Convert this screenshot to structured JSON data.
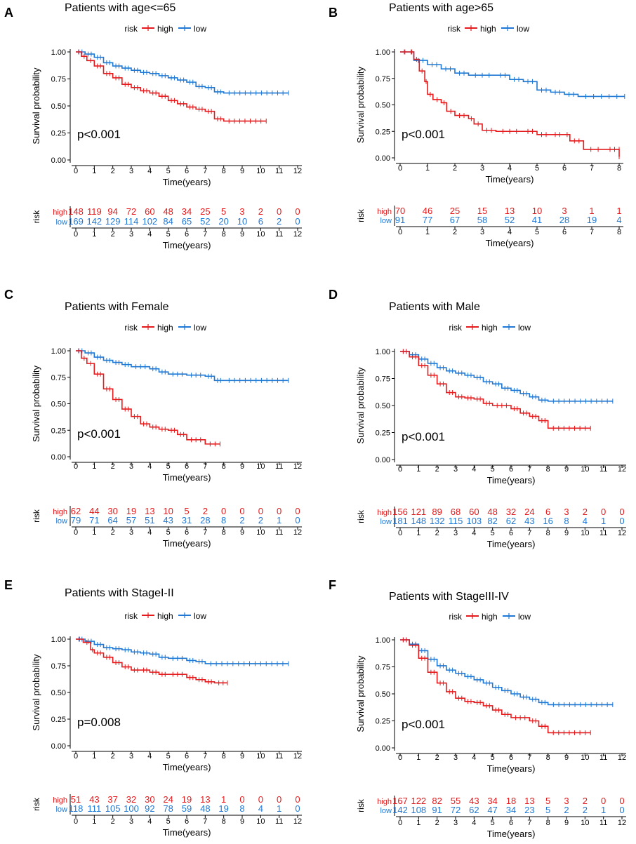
{
  "colors": {
    "high": "#e41a1c",
    "low": "#1f78d4",
    "axis": "#000000"
  },
  "panels": [
    {
      "letter": "A",
      "title": "Patients with age<=65",
      "legend_title": "risk",
      "legend_high": "high",
      "legend_low": "low",
      "pvalue": "p<0.001",
      "ylabel": "Survival probability",
      "xlabel": "Time(years)",
      "ylim": [
        0,
        1
      ],
      "xlim": [
        0,
        12
      ],
      "yticks": [
        "0.00",
        "0.25",
        "0.50",
        "0.75",
        "1.00"
      ],
      "xticks": [
        "0",
        "1",
        "2",
        "3",
        "4",
        "5",
        "6",
        "7",
        "8",
        "9",
        "10",
        "11",
        "12"
      ],
      "risk_label": "risk",
      "risk_high_label": "high",
      "risk_low_label": "low",
      "risk_high": [
        "148",
        "119",
        "94",
        "72",
        "60",
        "48",
        "34",
        "25",
        "5",
        "3",
        "2",
        "0",
        "0"
      ],
      "risk_low": [
        "169",
        "142",
        "129",
        "114",
        "102",
        "84",
        "65",
        "52",
        "20",
        "10",
        "6",
        "2",
        "0"
      ],
      "curve_high": [
        [
          0,
          1
        ],
        [
          0.3,
          0.96
        ],
        [
          0.6,
          0.92
        ],
        [
          1,
          0.87
        ],
        [
          1.5,
          0.8
        ],
        [
          2,
          0.76
        ],
        [
          2.5,
          0.7
        ],
        [
          3,
          0.67
        ],
        [
          3.5,
          0.64
        ],
        [
          4,
          0.62
        ],
        [
          4.5,
          0.59
        ],
        [
          5,
          0.55
        ],
        [
          5.5,
          0.52
        ],
        [
          6,
          0.49
        ],
        [
          6.5,
          0.47
        ],
        [
          7,
          0.45
        ],
        [
          7.5,
          0.38
        ],
        [
          8,
          0.36
        ],
        [
          10.3,
          0.36
        ]
      ],
      "curve_low": [
        [
          0,
          1
        ],
        [
          0.5,
          0.98
        ],
        [
          1,
          0.95
        ],
        [
          1.5,
          0.9
        ],
        [
          2,
          0.87
        ],
        [
          2.5,
          0.85
        ],
        [
          3,
          0.83
        ],
        [
          3.5,
          0.81
        ],
        [
          4,
          0.8
        ],
        [
          4.5,
          0.78
        ],
        [
          5,
          0.76
        ],
        [
          5.5,
          0.74
        ],
        [
          6,
          0.72
        ],
        [
          6.5,
          0.68
        ],
        [
          7,
          0.67
        ],
        [
          7.5,
          0.63
        ],
        [
          8,
          0.62
        ],
        [
          11.5,
          0.62
        ]
      ]
    },
    {
      "letter": "B",
      "title": "Patients with age>65",
      "legend_title": "risk",
      "legend_high": "high",
      "legend_low": "low",
      "pvalue": "p<0.001",
      "ylabel": "Survival probability",
      "xlabel": "Time(years)",
      "ylim": [
        0,
        1
      ],
      "xlim": [
        0,
        8
      ],
      "yticks": [
        "0.00",
        "0.25",
        "0.50",
        "0.75",
        "1.00"
      ],
      "xticks": [
        "0",
        "1",
        "2",
        "3",
        "4",
        "5",
        "6",
        "7",
        "8"
      ],
      "risk_label": "risk",
      "risk_high_label": "high",
      "risk_low_label": "low",
      "risk_high": [
        "70",
        "46",
        "25",
        "15",
        "13",
        "10",
        "3",
        "1",
        "1"
      ],
      "risk_low": [
        "91",
        "77",
        "67",
        "58",
        "52",
        "41",
        "28",
        "19",
        "4"
      ],
      "curve_high": [
        [
          0,
          1
        ],
        [
          0.35,
          1
        ],
        [
          0.5,
          0.93
        ],
        [
          0.7,
          0.82
        ],
        [
          0.9,
          0.72
        ],
        [
          1,
          0.6
        ],
        [
          1.2,
          0.55
        ],
        [
          1.5,
          0.52
        ],
        [
          1.7,
          0.44
        ],
        [
          2,
          0.4
        ],
        [
          2.5,
          0.37
        ],
        [
          2.7,
          0.32
        ],
        [
          3,
          0.26
        ],
        [
          3.5,
          0.25
        ],
        [
          4.5,
          0.25
        ],
        [
          5,
          0.22
        ],
        [
          5.5,
          0.22
        ],
        [
          6,
          0.22
        ],
        [
          6.2,
          0.16
        ],
        [
          6.7,
          0.08
        ],
        [
          7.5,
          0.08
        ],
        [
          8,
          0.08
        ],
        [
          8,
          0.01
        ]
      ],
      "curve_low": [
        [
          0,
          1
        ],
        [
          0.3,
          1
        ],
        [
          0.5,
          0.92
        ],
        [
          1,
          0.88
        ],
        [
          1.5,
          0.84
        ],
        [
          2,
          0.8
        ],
        [
          2.5,
          0.78
        ],
        [
          3.5,
          0.78
        ],
        [
          4,
          0.74
        ],
        [
          4.5,
          0.72
        ],
        [
          5,
          0.64
        ],
        [
          5.5,
          0.62
        ],
        [
          6,
          0.6
        ],
        [
          6.5,
          0.58
        ],
        [
          8.2,
          0.58
        ]
      ]
    },
    {
      "letter": "C",
      "title": "Patients with Female",
      "legend_title": "risk",
      "legend_high": "high",
      "legend_low": "low",
      "pvalue": "p<0.001",
      "ylabel": "Survival probability",
      "xlabel": "Time(years)",
      "ylim": [
        0,
        1
      ],
      "xlim": [
        0,
        12
      ],
      "yticks": [
        "0.00",
        "0.25",
        "0.50",
        "0.75",
        "1.00"
      ],
      "xticks": [
        "0",
        "1",
        "2",
        "3",
        "4",
        "5",
        "6",
        "7",
        "8",
        "9",
        "10",
        "11",
        "12"
      ],
      "risk_label": "risk",
      "risk_high_label": "high",
      "risk_low_label": "low",
      "risk_high": [
        "62",
        "44",
        "30",
        "19",
        "13",
        "10",
        "5",
        "2",
        "0",
        "0",
        "0",
        "0",
        "0"
      ],
      "risk_low": [
        "79",
        "71",
        "64",
        "57",
        "51",
        "43",
        "31",
        "28",
        "8",
        "2",
        "2",
        "1",
        "0"
      ],
      "curve_high": [
        [
          0,
          1
        ],
        [
          0.3,
          0.93
        ],
        [
          0.6,
          0.88
        ],
        [
          1,
          0.78
        ],
        [
          1.5,
          0.64
        ],
        [
          2,
          0.54
        ],
        [
          2.5,
          0.45
        ],
        [
          3,
          0.38
        ],
        [
          3.5,
          0.31
        ],
        [
          4,
          0.28
        ],
        [
          4.5,
          0.26
        ],
        [
          5,
          0.25
        ],
        [
          5.5,
          0.21
        ],
        [
          6,
          0.16
        ],
        [
          7,
          0.12
        ],
        [
          7.8,
          0.12
        ]
      ],
      "curve_low": [
        [
          0,
          1
        ],
        [
          0.5,
          0.98
        ],
        [
          1,
          0.94
        ],
        [
          1.5,
          0.91
        ],
        [
          2,
          0.89
        ],
        [
          2.5,
          0.87
        ],
        [
          3,
          0.85
        ],
        [
          4,
          0.83
        ],
        [
          4.5,
          0.8
        ],
        [
          5,
          0.78
        ],
        [
          6,
          0.77
        ],
        [
          7,
          0.76
        ],
        [
          7.5,
          0.72
        ],
        [
          8,
          0.72
        ],
        [
          11.5,
          0.72
        ]
      ]
    },
    {
      "letter": "D",
      "title": "Patients with Male",
      "legend_title": "risk",
      "legend_high": "high",
      "legend_low": "low",
      "pvalue": "p<0.001",
      "ylabel": "Survival probability",
      "xlabel": "Time(years)",
      "ylim": [
        0,
        1
      ],
      "xlim": [
        0,
        12
      ],
      "yticks": [
        "0.00",
        "0.25",
        "0.50",
        "0.75",
        "1.00"
      ],
      "xticks": [
        "0",
        "1",
        "2",
        "3",
        "4",
        "5",
        "6",
        "7",
        "8",
        "9",
        "10",
        "11",
        "12"
      ],
      "risk_label": "risk",
      "risk_high_label": "high",
      "risk_low_label": "low",
      "risk_high": [
        "156",
        "121",
        "89",
        "68",
        "60",
        "48",
        "32",
        "24",
        "6",
        "3",
        "2",
        "0",
        "0"
      ],
      "risk_low": [
        "181",
        "148",
        "132",
        "115",
        "103",
        "82",
        "62",
        "43",
        "16",
        "8",
        "4",
        "1",
        "0"
      ],
      "curve_high": [
        [
          0,
          1
        ],
        [
          0.5,
          0.95
        ],
        [
          1,
          0.87
        ],
        [
          1.5,
          0.78
        ],
        [
          2,
          0.7
        ],
        [
          2.5,
          0.62
        ],
        [
          3,
          0.58
        ],
        [
          3.5,
          0.57
        ],
        [
          4,
          0.56
        ],
        [
          4.5,
          0.52
        ],
        [
          5,
          0.5
        ],
        [
          6,
          0.47
        ],
        [
          6.5,
          0.43
        ],
        [
          7,
          0.4
        ],
        [
          7.5,
          0.36
        ],
        [
          8,
          0.29
        ],
        [
          10.3,
          0.29
        ]
      ],
      "curve_low": [
        [
          0,
          1
        ],
        [
          0.5,
          0.97
        ],
        [
          1,
          0.93
        ],
        [
          1.5,
          0.89
        ],
        [
          2,
          0.85
        ],
        [
          2.5,
          0.82
        ],
        [
          3,
          0.8
        ],
        [
          3.5,
          0.78
        ],
        [
          4,
          0.76
        ],
        [
          4.5,
          0.72
        ],
        [
          5,
          0.7
        ],
        [
          5.5,
          0.66
        ],
        [
          6,
          0.64
        ],
        [
          6.5,
          0.61
        ],
        [
          7,
          0.58
        ],
        [
          7.5,
          0.55
        ],
        [
          8,
          0.54
        ],
        [
          11.5,
          0.54
        ]
      ]
    },
    {
      "letter": "E",
      "title": "Patients with StageI-II",
      "legend_title": "risk",
      "legend_high": "high",
      "legend_low": "low",
      "pvalue": "p=0.008",
      "ylabel": "Survival probability",
      "xlabel": "Time(years)",
      "ylim": [
        0,
        1
      ],
      "xlim": [
        0,
        12
      ],
      "yticks": [
        "0.00",
        "0.25",
        "0.50",
        "0.75",
        "1.00"
      ],
      "xticks": [
        "0",
        "1",
        "2",
        "3",
        "4",
        "5",
        "6",
        "7",
        "8",
        "9",
        "10",
        "11",
        "12"
      ],
      "risk_label": "risk",
      "risk_high_label": "high",
      "risk_low_label": "low",
      "risk_high": [
        "51",
        "43",
        "37",
        "32",
        "30",
        "24",
        "19",
        "13",
        "1",
        "0",
        "0",
        "0",
        "0"
      ],
      "risk_low": [
        "118",
        "111",
        "105",
        "100",
        "92",
        "78",
        "59",
        "48",
        "19",
        "8",
        "4",
        "1",
        "0"
      ],
      "curve_high": [
        [
          0,
          1
        ],
        [
          0.4,
          0.97
        ],
        [
          0.8,
          0.9
        ],
        [
          1,
          0.87
        ],
        [
          1.5,
          0.83
        ],
        [
          2,
          0.78
        ],
        [
          2.5,
          0.74
        ],
        [
          3,
          0.71
        ],
        [
          3.5,
          0.71
        ],
        [
          4,
          0.69
        ],
        [
          4.5,
          0.67
        ],
        [
          5,
          0.67
        ],
        [
          6,
          0.64
        ],
        [
          6.5,
          0.62
        ],
        [
          7,
          0.6
        ],
        [
          7.5,
          0.59
        ],
        [
          8.2,
          0.59
        ]
      ],
      "curve_low": [
        [
          0,
          1
        ],
        [
          0.5,
          0.98
        ],
        [
          1,
          0.95
        ],
        [
          1.5,
          0.92
        ],
        [
          2,
          0.91
        ],
        [
          2.5,
          0.9
        ],
        [
          3,
          0.88
        ],
        [
          3.5,
          0.87
        ],
        [
          4,
          0.86
        ],
        [
          4.5,
          0.83
        ],
        [
          5,
          0.82
        ],
        [
          6,
          0.8
        ],
        [
          6.5,
          0.79
        ],
        [
          7,
          0.77
        ],
        [
          11.5,
          0.77
        ]
      ]
    },
    {
      "letter": "F",
      "title": "Patients with StageIII-IV",
      "legend_title": "risk",
      "legend_high": "high",
      "legend_low": "low",
      "pvalue": "p<0.001",
      "ylabel": "Survival probability",
      "xlabel": "Time(years)",
      "ylim": [
        0,
        1
      ],
      "xlim": [
        0,
        12
      ],
      "yticks": [
        "0.00",
        "0.25",
        "0.50",
        "0.75",
        "1.00"
      ],
      "xticks": [
        "0",
        "1",
        "2",
        "3",
        "4",
        "5",
        "6",
        "7",
        "8",
        "9",
        "10",
        "11",
        "12"
      ],
      "risk_label": "risk",
      "risk_high_label": "high",
      "risk_low_label": "low",
      "risk_high": [
        "167",
        "122",
        "82",
        "55",
        "43",
        "34",
        "18",
        "13",
        "5",
        "3",
        "2",
        "0",
        "0"
      ],
      "risk_low": [
        "142",
        "108",
        "91",
        "72",
        "62",
        "47",
        "34",
        "23",
        "5",
        "2",
        "2",
        "1",
        "0"
      ],
      "curve_high": [
        [
          0,
          1
        ],
        [
          0.5,
          0.95
        ],
        [
          1,
          0.83
        ],
        [
          1.5,
          0.7
        ],
        [
          2,
          0.6
        ],
        [
          2.5,
          0.52
        ],
        [
          3,
          0.46
        ],
        [
          3.5,
          0.43
        ],
        [
          4,
          0.42
        ],
        [
          4.5,
          0.39
        ],
        [
          5,
          0.35
        ],
        [
          5.5,
          0.31
        ],
        [
          6,
          0.28
        ],
        [
          7,
          0.25
        ],
        [
          7.5,
          0.2
        ],
        [
          8,
          0.14
        ],
        [
          10.3,
          0.14
        ]
      ],
      "curve_low": [
        [
          0,
          1
        ],
        [
          0.5,
          0.96
        ],
        [
          1,
          0.9
        ],
        [
          1.5,
          0.82
        ],
        [
          2,
          0.76
        ],
        [
          2.5,
          0.72
        ],
        [
          3,
          0.69
        ],
        [
          3.5,
          0.66
        ],
        [
          4,
          0.63
        ],
        [
          4.5,
          0.6
        ],
        [
          5,
          0.56
        ],
        [
          5.5,
          0.53
        ],
        [
          6,
          0.5
        ],
        [
          6.5,
          0.47
        ],
        [
          7,
          0.45
        ],
        [
          7.5,
          0.42
        ],
        [
          8,
          0.4
        ],
        [
          11.5,
          0.4
        ]
      ]
    }
  ],
  "chart_data": [
    {
      "type": "line",
      "title": "Patients with age<=65",
      "xlabel": "Time(years)",
      "ylabel": "Survival probability",
      "xlim": [
        0,
        12
      ],
      "ylim": [
        0,
        1
      ],
      "series": [
        {
          "name": "high"
        },
        {
          "name": "low"
        }
      ]
    },
    {
      "type": "line",
      "title": "Patients with age>65",
      "xlabel": "Time(years)",
      "ylabel": "Survival probability",
      "xlim": [
        0,
        8
      ],
      "ylim": [
        0,
        1
      ],
      "series": [
        {
          "name": "high"
        },
        {
          "name": "low"
        }
      ]
    },
    {
      "type": "line",
      "title": "Patients with Female",
      "xlabel": "Time(years)",
      "ylabel": "Survival probability",
      "xlim": [
        0,
        12
      ],
      "ylim": [
        0,
        1
      ],
      "series": [
        {
          "name": "high"
        },
        {
          "name": "low"
        }
      ]
    },
    {
      "type": "line",
      "title": "Patients with Male",
      "xlabel": "Time(years)",
      "ylabel": "Survival probability",
      "xlim": [
        0,
        12
      ],
      "ylim": [
        0,
        1
      ],
      "series": [
        {
          "name": "high"
        },
        {
          "name": "low"
        }
      ]
    },
    {
      "type": "line",
      "title": "Patients with StageI-II",
      "xlabel": "Time(years)",
      "ylabel": "Survival probability",
      "xlim": [
        0,
        12
      ],
      "ylim": [
        0,
        1
      ],
      "series": [
        {
          "name": "high"
        },
        {
          "name": "low"
        }
      ]
    },
    {
      "type": "line",
      "title": "Patients with StageIII-IV",
      "xlabel": "Time(years)",
      "ylabel": "Survival probability",
      "xlim": [
        0,
        12
      ],
      "ylim": [
        0,
        1
      ],
      "series": [
        {
          "name": "high"
        },
        {
          "name": "low"
        }
      ]
    }
  ]
}
